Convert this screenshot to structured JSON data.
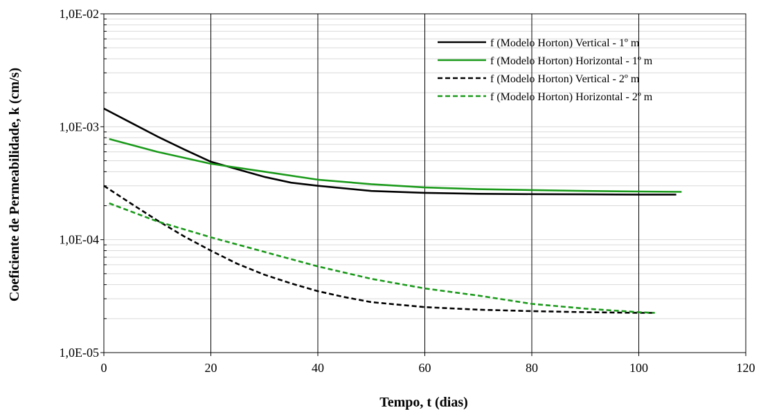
{
  "chart_data": {
    "type": "line",
    "xlabel": "Tempo, t (dias)",
    "ylabel": "Coeficiente de Permeabilidade, k (cm/s)",
    "xlim": [
      0,
      120
    ],
    "ylim": [
      1e-05,
      0.01
    ],
    "y_scale": "log",
    "grid": true,
    "legend_position": "top-right",
    "x_ticks": [
      0,
      20,
      40,
      60,
      80,
      100,
      120
    ],
    "x_tick_labels": [
      "0",
      "20",
      "40",
      "60",
      "80",
      "100",
      "120"
    ],
    "y_ticks": [
      1e-05,
      0.0001,
      0.001,
      0.01
    ],
    "y_tick_labels": [
      "1,0E-05",
      "1,0E-04",
      "1,0E-03",
      "1,0E-02"
    ],
    "series": [
      {
        "name": "f (Modelo Horton) Vertical - 1º m",
        "color": "#000000",
        "dash": "solid",
        "x": [
          0,
          5,
          10,
          15,
          20,
          25,
          30,
          35,
          40,
          50,
          60,
          70,
          80,
          90,
          100,
          107
        ],
        "y": [
          0.00145,
          0.00109,
          0.00082,
          0.00063,
          0.00049,
          0.00042,
          0.00036,
          0.00032,
          0.0003,
          0.00027,
          0.00026,
          0.000255,
          0.000253,
          0.000252,
          0.000251,
          0.000251
        ]
      },
      {
        "name": "f (Modelo Horton) Horizontal - 1º m",
        "color": "#1a9a1a",
        "dash": "solid",
        "x": [
          1,
          10,
          20,
          30,
          40,
          50,
          60,
          70,
          80,
          90,
          100,
          108
        ],
        "y": [
          0.00078,
          0.0006,
          0.00047,
          0.0004,
          0.00034,
          0.00031,
          0.00029,
          0.00028,
          0.000275,
          0.00027,
          0.000267,
          0.000265
        ]
      },
      {
        "name": "f (Modelo Horton) Vertical - 2º m",
        "color": "#000000",
        "dash": "dashed",
        "x": [
          0,
          5,
          10,
          15,
          20,
          25,
          30,
          35,
          40,
          45,
          50,
          60,
          70,
          80,
          90,
          100,
          103
        ],
        "y": [
          0.0003,
          0.00021,
          0.000148,
          0.000107,
          8e-05,
          6.1e-05,
          4.9e-05,
          4.1e-05,
          3.5e-05,
          3.1e-05,
          2.8e-05,
          2.53e-05,
          2.4e-05,
          2.33e-05,
          2.28e-05,
          2.25e-05,
          2.25e-05
        ]
      },
      {
        "name": "f (Modelo Horton) Horizontal - 2º m",
        "color": "#1a9a1a",
        "dash": "dashed",
        "x": [
          1,
          10,
          20,
          30,
          40,
          50,
          60,
          70,
          80,
          90,
          100,
          103
        ],
        "y": [
          0.00021,
          0.000145,
          0.000105,
          7.8e-05,
          5.8e-05,
          4.5e-05,
          3.7e-05,
          3.2e-05,
          2.7e-05,
          2.45e-05,
          2.28e-05,
          2.25e-05
        ]
      }
    ]
  }
}
